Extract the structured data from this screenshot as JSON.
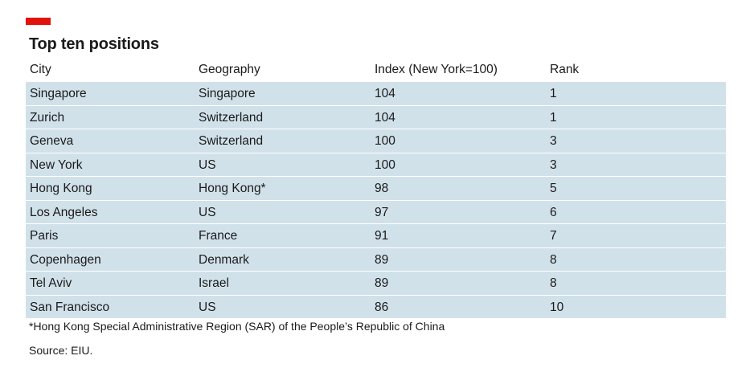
{
  "colors": {
    "accent": "#e3120b",
    "row_fill": "#d1e1ea",
    "text": "#1a1a1a"
  },
  "chart_data": {
    "type": "table",
    "title": "Top ten positions",
    "columns": [
      "City",
      "Geography",
      "Index (New York=100)",
      "Rank"
    ],
    "rows": [
      [
        "Singapore",
        "Singapore",
        "104",
        "1"
      ],
      [
        "Zurich",
        "Switzerland",
        "104",
        "1"
      ],
      [
        "Geneva",
        "Switzerland",
        "100",
        "3"
      ],
      [
        "New York",
        "US",
        "100",
        "3"
      ],
      [
        "Hong Kong",
        "Hong Kong*",
        "98",
        "5"
      ],
      [
        "Los Angeles",
        "US",
        "97",
        "6"
      ],
      [
        "Paris",
        "France",
        "91",
        "7"
      ],
      [
        "Copenhagen",
        "Denmark",
        "89",
        "8"
      ],
      [
        "Tel Aviv",
        "Israel",
        "89",
        "8"
      ],
      [
        "San Francisco",
        "US",
        "86",
        "10"
      ]
    ],
    "footnote": "*Hong Kong Special Administrative Region (SAR) of the People’s Republic of China",
    "source": "Source: EIU."
  }
}
